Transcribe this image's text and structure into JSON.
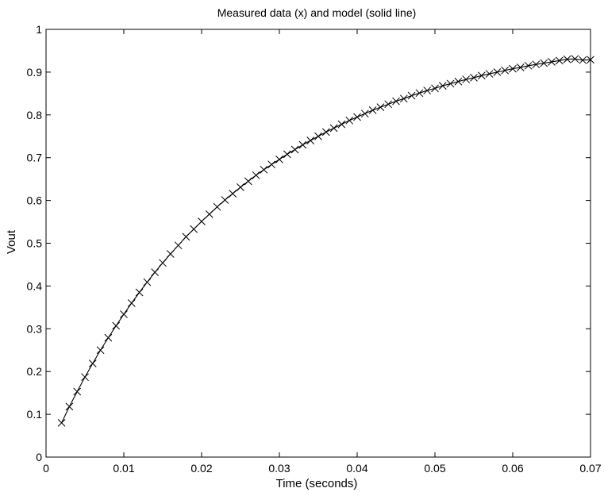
{
  "chart_data": {
    "type": "line",
    "title": "Measured data (x) and model (solid line)",
    "xlabel": "Time (seconds)",
    "ylabel": "Vout",
    "xlim": [
      0,
      0.07
    ],
    "ylim": [
      0,
      1
    ],
    "xticks": [
      0,
      0.01,
      0.02,
      0.03,
      0.04,
      0.05,
      0.06,
      0.07
    ],
    "xtick_labels": [
      "0",
      "0.01",
      "0.02",
      "0.03",
      "0.04",
      "0.05",
      "0.06",
      "0.07"
    ],
    "yticks": [
      0,
      0.1,
      0.2,
      0.3,
      0.4,
      0.5,
      0.6,
      0.7,
      0.8,
      0.9,
      1
    ],
    "ytick_labels": [
      "0",
      "0.1",
      "0.2",
      "0.3",
      "0.4",
      "0.5",
      "0.6",
      "0.7",
      "0.8",
      "0.9",
      "1"
    ],
    "grid": false,
    "series": [
      {
        "style": "markers-x",
        "color": "#000000",
        "x": [
          0.002,
          0.003,
          0.004,
          0.005,
          0.006,
          0.007,
          0.008,
          0.009,
          0.01,
          0.011,
          0.012,
          0.013,
          0.014,
          0.015,
          0.016,
          0.017,
          0.018,
          0.019,
          0.02,
          0.021,
          0.022,
          0.023,
          0.024,
          0.025,
          0.026,
          0.027,
          0.028,
          0.029,
          0.03,
          0.031,
          0.032,
          0.033,
          0.034,
          0.035,
          0.036,
          0.037,
          0.038,
          0.039,
          0.04,
          0.041,
          0.042,
          0.043,
          0.044,
          0.045,
          0.046,
          0.047,
          0.048,
          0.049,
          0.05,
          0.051,
          0.052,
          0.053,
          0.054,
          0.055,
          0.056,
          0.057,
          0.058,
          0.059,
          0.06,
          0.061,
          0.062,
          0.063,
          0.064,
          0.065,
          0.066,
          0.067,
          0.068,
          0.069,
          0.07
        ],
        "y": [
          0.08,
          0.118,
          0.153,
          0.187,
          0.219,
          0.25,
          0.279,
          0.307,
          0.334,
          0.36,
          0.385,
          0.409,
          0.432,
          0.454,
          0.475,
          0.495,
          0.515,
          0.533,
          0.551,
          0.568,
          0.585,
          0.601,
          0.616,
          0.631,
          0.645,
          0.659,
          0.672,
          0.684,
          0.696,
          0.708,
          0.719,
          0.73,
          0.74,
          0.75,
          0.76,
          0.769,
          0.778,
          0.787,
          0.795,
          0.803,
          0.811,
          0.818,
          0.825,
          0.832,
          0.838,
          0.845,
          0.851,
          0.857,
          0.862,
          0.868,
          0.873,
          0.878,
          0.883,
          0.887,
          0.892,
          0.896,
          0.9,
          0.904,
          0.908,
          0.911,
          0.915,
          0.918,
          0.921,
          0.924,
          0.927,
          0.93,
          0.931,
          0.928,
          0.929
        ]
      },
      {
        "style": "solid",
        "color": "#000000",
        "x": [
          0.002,
          0.003,
          0.004,
          0.005,
          0.006,
          0.007,
          0.008,
          0.009,
          0.01,
          0.011,
          0.012,
          0.013,
          0.014,
          0.015,
          0.016,
          0.017,
          0.018,
          0.019,
          0.02,
          0.021,
          0.022,
          0.023,
          0.024,
          0.025,
          0.026,
          0.027,
          0.028,
          0.029,
          0.03,
          0.031,
          0.032,
          0.033,
          0.034,
          0.035,
          0.036,
          0.037,
          0.038,
          0.039,
          0.04,
          0.041,
          0.042,
          0.043,
          0.044,
          0.045,
          0.046,
          0.047,
          0.048,
          0.049,
          0.05,
          0.051,
          0.052,
          0.053,
          0.054,
          0.055,
          0.056,
          0.057,
          0.058,
          0.059,
          0.06,
          0.061,
          0.062,
          0.063,
          0.064,
          0.065,
          0.066,
          0.067,
          0.068,
          0.069,
          0.07
        ],
        "y": [
          0.08,
          0.118,
          0.153,
          0.187,
          0.219,
          0.25,
          0.279,
          0.307,
          0.334,
          0.36,
          0.385,
          0.409,
          0.432,
          0.454,
          0.475,
          0.495,
          0.515,
          0.533,
          0.551,
          0.568,
          0.585,
          0.601,
          0.616,
          0.631,
          0.645,
          0.659,
          0.672,
          0.684,
          0.696,
          0.708,
          0.719,
          0.73,
          0.74,
          0.75,
          0.76,
          0.769,
          0.778,
          0.787,
          0.795,
          0.803,
          0.811,
          0.818,
          0.825,
          0.832,
          0.838,
          0.845,
          0.851,
          0.857,
          0.862,
          0.868,
          0.873,
          0.878,
          0.883,
          0.887,
          0.892,
          0.896,
          0.9,
          0.904,
          0.908,
          0.911,
          0.915,
          0.918,
          0.921,
          0.924,
          0.927,
          0.93,
          0.931,
          0.928,
          0.929
        ]
      }
    ]
  }
}
